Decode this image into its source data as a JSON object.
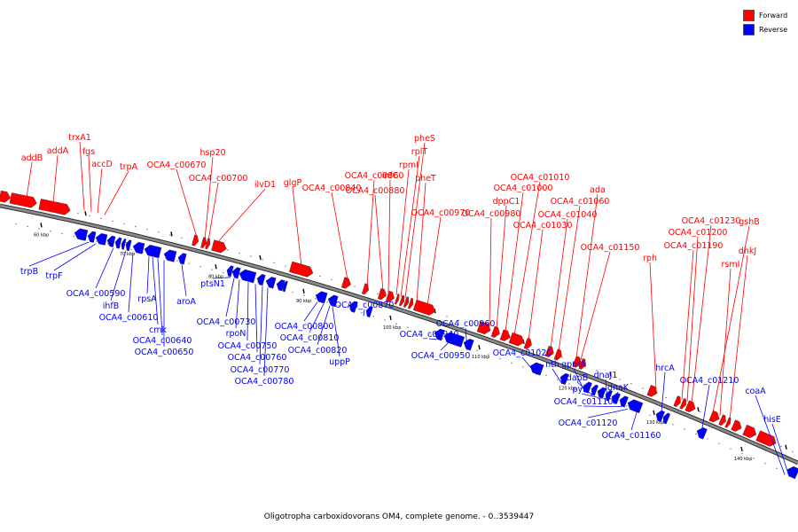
{
  "colors": {
    "forward": "#ff0000",
    "reverse": "#0000ff",
    "axis": "#8a8a8a"
  },
  "legend": {
    "forward": "Forward",
    "reverse": "Reverse"
  },
  "caption": "Oligotropha carboxidovorans OM4, complete genome. - 0..3539447",
  "scale_labels": [
    "60 kbp",
    "70 kbp",
    "80 kbp",
    "90 kbp",
    "100 kbp",
    "110 kbp",
    "120 kbp",
    "130 kbp",
    "140 kbp"
  ],
  "forward_genes": [
    "addB",
    "addA",
    "trxA1",
    "fgs",
    "accD",
    "trpA",
    "OCA4_c00670",
    "hsp20",
    "OCA4_c00700",
    "ilvD1",
    "glgP",
    "OCA4_c00840",
    "OCA4_c00860",
    "OCA4_c00880",
    "infC",
    "rpmI",
    "rplT",
    "pheS",
    "pheT",
    "OCA4_c00970",
    "OCA4_c00980",
    "dppC1",
    "OCA4_c01000",
    "OCA4_c01010",
    "OCA4_c01030",
    "OCA4_c01040",
    "OCA4_c01060",
    "ada",
    "OCA4_c01150",
    "rph",
    "OCA4_c01190",
    "OCA4_c01200",
    "OCA4_c01230",
    "gshB",
    "rsmI",
    "dhkJ"
  ],
  "reverse_genes": [
    "trpB",
    "trpF",
    "OCA4_c00590",
    "ihfB",
    "OCA4_c00610",
    "rpsA",
    "cmk",
    "OCA4_c00640",
    "OCA4_c00650",
    "aroA",
    "ptsN1",
    "OCA4_c00730",
    "rpoN",
    "OCA4_c00750",
    "OCA4_c00760",
    "OCA4_c00770",
    "OCA4_c00780",
    "OCA4_c00800",
    "OCA4_c00810",
    "OCA4_c00820",
    "uppP",
    "OCA4_c00870",
    "OCA4_c00940",
    "OCA4_c00950",
    "OCA4_c00960",
    "OCA4_c01020",
    "nth",
    "gpmA",
    "dapB",
    "pyrF",
    "dnaJ1",
    "dnaK",
    "OCA4_c01110",
    "OCA4_c01120",
    "OCA4_c01160",
    "hrcA",
    "OCA4_c01210",
    "coaA",
    "hisE"
  ]
}
